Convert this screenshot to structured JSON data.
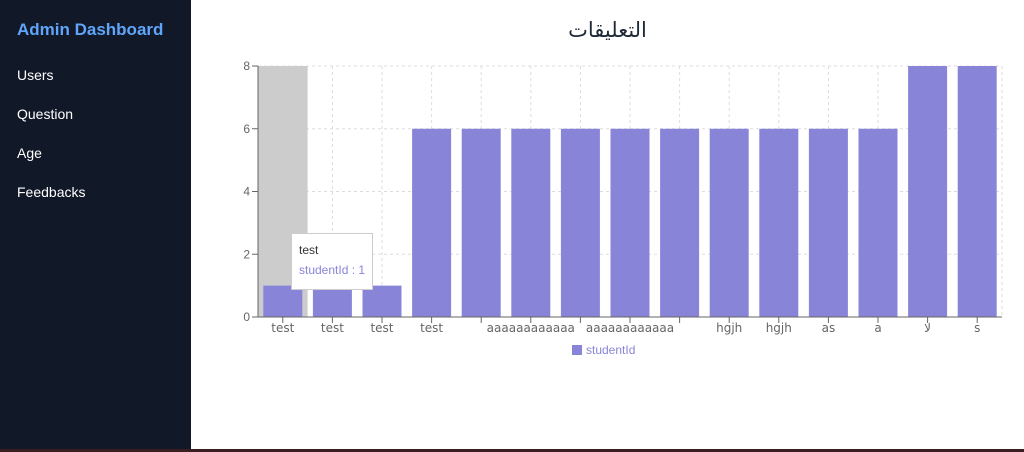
{
  "sidebar": {
    "brand": "Admin Dashboard",
    "items": [
      {
        "label": "Users"
      },
      {
        "label": "Question"
      },
      {
        "label": "Age"
      },
      {
        "label": "Feedbacks"
      }
    ]
  },
  "main": {
    "title": "التعليقات"
  },
  "colors": {
    "sidebar_bg": "#111827",
    "brand": "#60a5fa",
    "bar": "#8884d8",
    "hover_cursor": "#cccccc"
  },
  "tooltip": {
    "label": "test",
    "series_name": "studentId",
    "separator": " : ",
    "value": 1
  },
  "chart_data": {
    "type": "bar",
    "categories": [
      "test",
      "test",
      "test",
      "test",
      "",
      "aaaaaaaaaaaa",
      "",
      "aaaaaaaaaaaa",
      "",
      "hgjh",
      "hgjh",
      "as",
      "a",
      "لا",
      "s"
    ],
    "series": [
      {
        "name": "studentId",
        "values": [
          1,
          1,
          1,
          6,
          6,
          6,
          6,
          6,
          6,
          6,
          6,
          6,
          6,
          8,
          8
        ]
      }
    ],
    "yticks": [
      0,
      2,
      4,
      6,
      8
    ],
    "ylim": [
      0,
      8
    ],
    "grid": true,
    "legend": "bottom-center",
    "hovered_index": 0
  }
}
